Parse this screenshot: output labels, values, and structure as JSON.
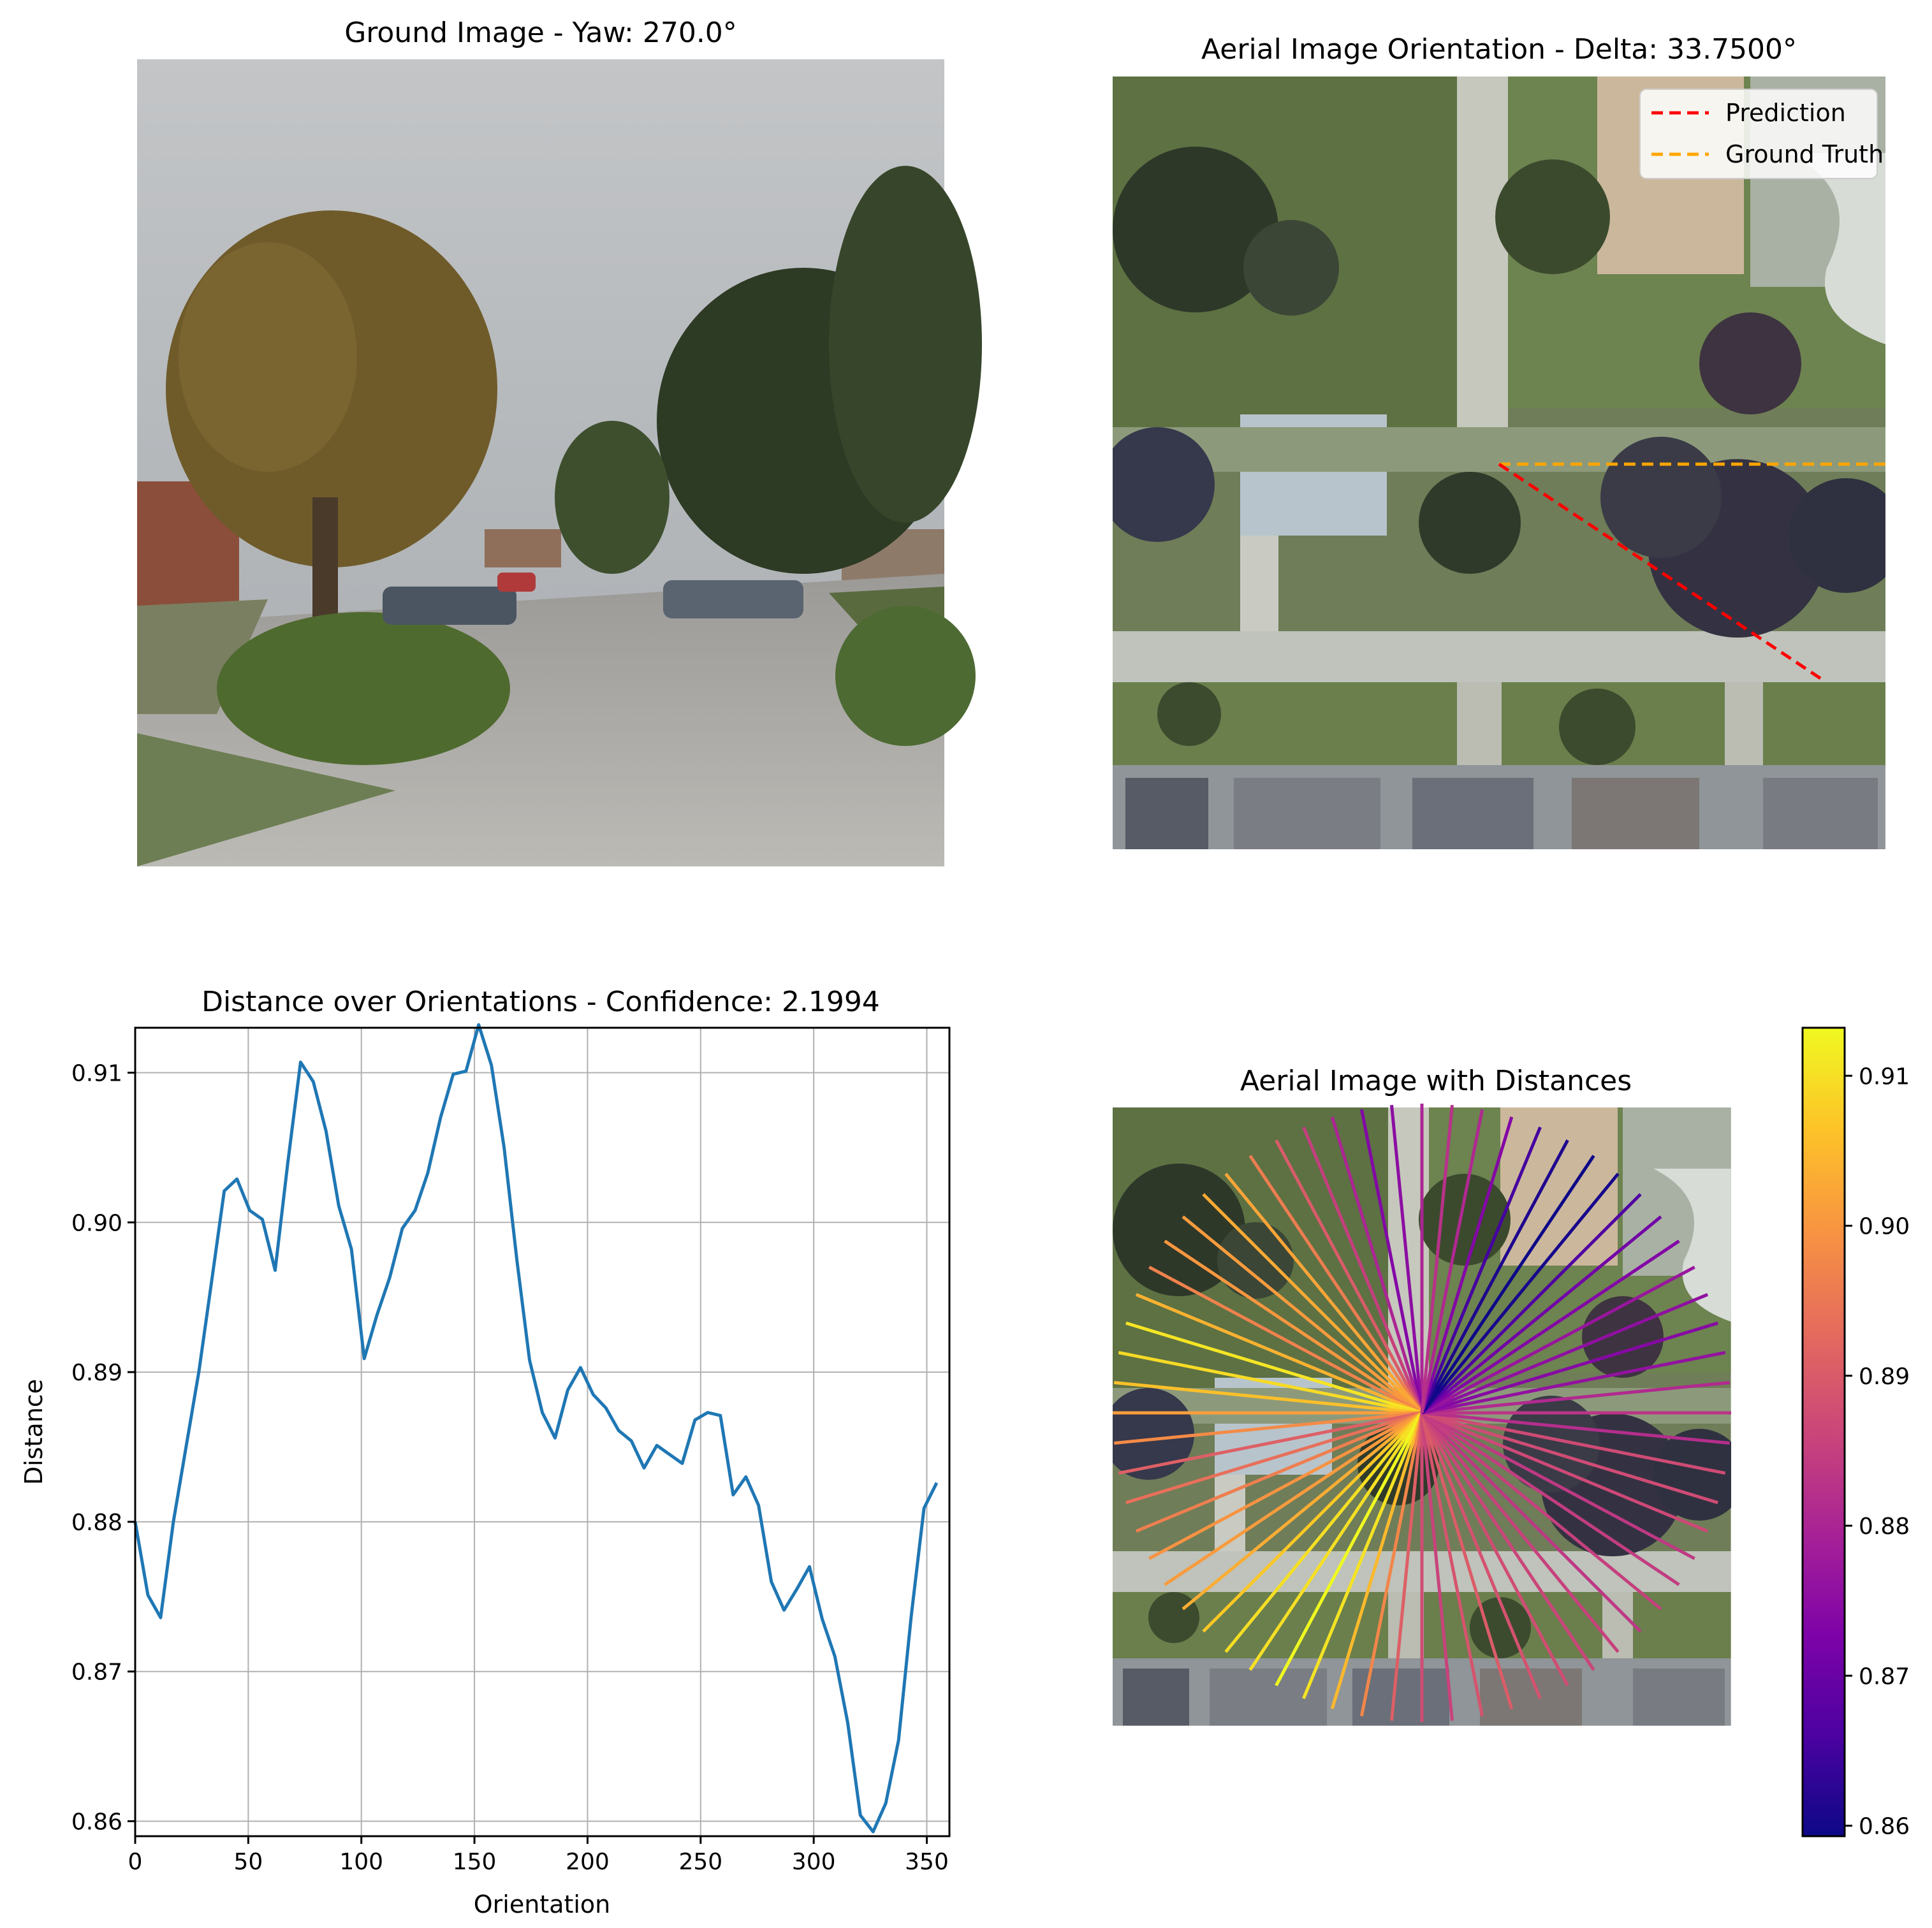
{
  "panels": {
    "ground": {
      "title": "Ground Image - Yaw: 270.0°"
    },
    "aerial": {
      "title": "Aerial Image Orientation - Delta: 33.7500°",
      "legend": [
        {
          "label": "Prediction",
          "color": "#ff0000"
        },
        {
          "label": "Ground Truth",
          "color": "#ffa500"
        }
      ]
    },
    "radial": {
      "title": "Aerial Image with Distances"
    }
  },
  "chart_data": [
    {
      "type": "line",
      "title": "Distance over Orientations - Confidence: 2.1994",
      "xlabel": "Orientation",
      "ylabel": "Distance",
      "xlim": [
        0,
        360
      ],
      "ylim": [
        0.859,
        0.913
      ],
      "grid": true,
      "x_ticks": [
        0,
        50,
        100,
        150,
        200,
        250,
        300,
        350
      ],
      "y_ticks": [
        0.86,
        0.87,
        0.88,
        0.89,
        0.9,
        0.91
      ],
      "y_tick_labels": [
        "0.86",
        "0.87",
        "0.88",
        "0.89",
        "0.90",
        "0.91"
      ],
      "series": [
        {
          "color": "#1f77b4",
          "x": [
            0,
            5.625,
            11.25,
            16.875,
            22.5,
            28.125,
            33.75,
            39.375,
            45,
            50.625,
            56.25,
            61.875,
            67.5,
            73.125,
            78.75,
            84.375,
            90,
            95.625,
            101.25,
            106.875,
            112.5,
            118.125,
            123.75,
            129.375,
            135,
            140.625,
            146.25,
            151.875,
            157.5,
            163.125,
            168.75,
            174.375,
            180,
            185.625,
            191.25,
            196.875,
            202.5,
            208.125,
            213.75,
            219.375,
            225,
            230.625,
            236.25,
            241.875,
            247.5,
            253.125,
            258.75,
            264.375,
            270,
            275.625,
            281.25,
            286.875,
            292.5,
            298.125,
            303.75,
            309.375,
            315,
            320.625,
            326.25,
            331.875,
            337.5,
            343.125,
            348.75,
            354.375
          ],
          "y": [
            0.88,
            0.8751,
            0.8736,
            0.88,
            0.885,
            0.89,
            0.896,
            0.9021,
            0.9029,
            0.9008,
            0.9002,
            0.8968,
            0.904,
            0.9107,
            0.9094,
            0.9061,
            0.9011,
            0.8982,
            0.8909,
            0.8938,
            0.8963,
            0.8996,
            0.9008,
            0.9033,
            0.907,
            0.9099,
            0.9101,
            0.9132,
            0.9105,
            0.905,
            0.8975,
            0.8908,
            0.8873,
            0.8856,
            0.8888,
            0.8903,
            0.8885,
            0.8876,
            0.8861,
            0.8854,
            0.8836,
            0.8851,
            0.8845,
            0.8839,
            0.8868,
            0.8873,
            0.8871,
            0.8818,
            0.883,
            0.8811,
            0.876,
            0.8741,
            0.8755,
            0.877,
            0.8735,
            0.871,
            0.8666,
            0.8604,
            0.8593,
            0.8612,
            0.8654,
            0.8737,
            0.8809,
            0.8826
          ]
        }
      ]
    },
    {
      "type": "colorbar",
      "colormap": "plasma",
      "range": [
        0.8593,
        0.9132
      ],
      "ticks": [
        0.86,
        0.87,
        0.88,
        0.89,
        0.9,
        0.91
      ],
      "tick_labels": [
        "0.86",
        "0.87",
        "0.88",
        "0.89",
        "0.90",
        "0.91"
      ]
    }
  ]
}
